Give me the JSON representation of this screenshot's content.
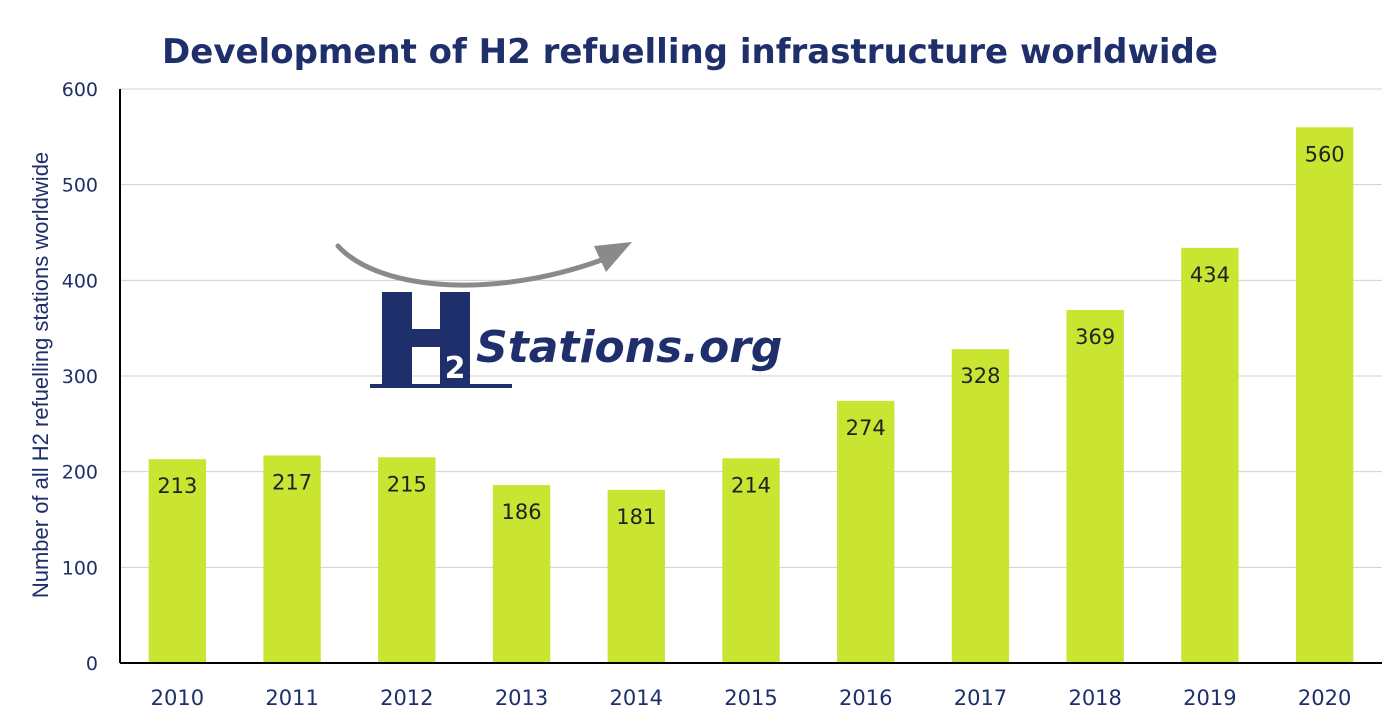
{
  "chart_data": {
    "type": "bar",
    "title": "Development of H2 refuelling infrastructure worldwide",
    "xlabel": "",
    "ylabel": "Number of all H2 refuelling stations worldwide",
    "ylim": [
      0,
      600
    ],
    "yticks": [
      0,
      100,
      200,
      300,
      400,
      500,
      600
    ],
    "grid": true,
    "categories": [
      "2010",
      "2011",
      "2012",
      "2013",
      "2014",
      "2015",
      "2016",
      "2017",
      "2018",
      "2019",
      "2020"
    ],
    "values": [
      213,
      217,
      215,
      186,
      181,
      214,
      274,
      328,
      369,
      434,
      560
    ],
    "data_labels": [
      "213",
      "217",
      "215",
      "186",
      "181",
      "214",
      "274",
      "328",
      "369",
      "434",
      "560"
    ],
    "bar_color": "#c9e431"
  },
  "logo": {
    "letter": "H",
    "subscript": "2",
    "text": "Stations.org",
    "color": "#1f2f6b",
    "arrow_color": "#8a8a8a"
  }
}
